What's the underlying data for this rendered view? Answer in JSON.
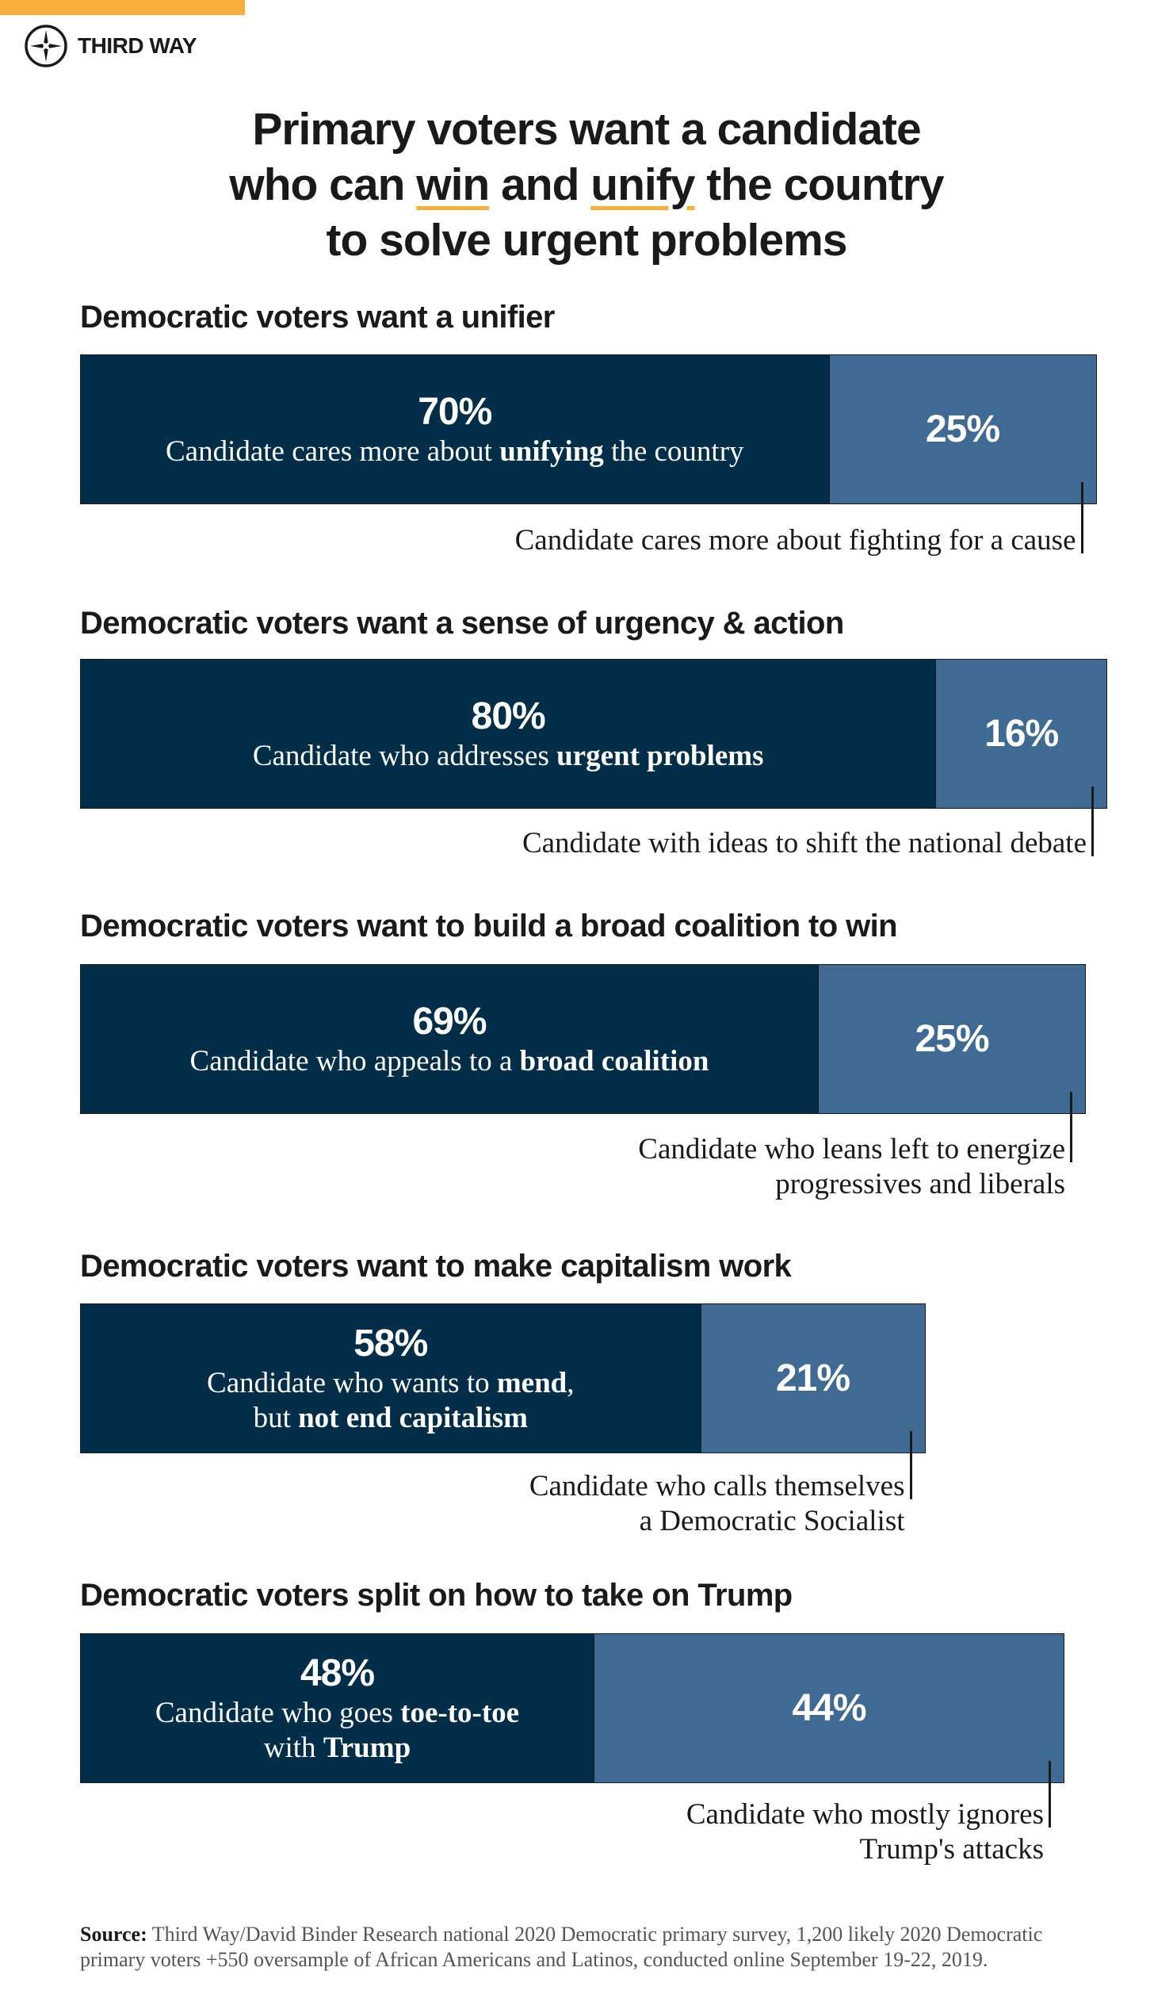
{
  "brand": {
    "name": "THIRD WAY",
    "logo_icon": "compass-star-icon",
    "accent_color": "#f9ad3b"
  },
  "title": {
    "line1": "Primary voters want a candidate",
    "line2_a": "who can ",
    "line2_win": "win",
    "line2_b": " and ",
    "line2_unify": "unify",
    "line2_c": " the country",
    "line3": "to solve urgent problems"
  },
  "colors": {
    "primary_choice": "#032e4a",
    "alternative_choice": "#3f6a93"
  },
  "chart_data": {
    "type": "bar",
    "orientation": "horizontal-stacked",
    "sections": [
      {
        "heading": "Democratic voters want a unifier",
        "left": {
          "value": 70,
          "pct": "70%",
          "label": [
            {
              "t": "Candidate cares more about ",
              "b": false
            },
            {
              "t": "unifying",
              "b": true
            },
            {
              "t": " the country",
              "b": false
            }
          ]
        },
        "right": {
          "value": 25,
          "pct": "25%",
          "label": [
            "Candidate cares more about fighting for a cause"
          ]
        }
      },
      {
        "heading": "Democratic voters want a sense of urgency & action",
        "left": {
          "value": 80,
          "pct": "80%",
          "label": [
            {
              "t": "Candidate who addresses ",
              "b": false
            },
            {
              "t": "urgent problems",
              "b": true
            }
          ]
        },
        "right": {
          "value": 16,
          "pct": "16%",
          "label": [
            "Candidate with ideas to shift the national debate"
          ]
        }
      },
      {
        "heading": "Democratic voters want to build a broad coalition to win",
        "left": {
          "value": 69,
          "pct": "69%",
          "label": [
            {
              "t": "Candidate who appeals to a ",
              "b": false
            },
            {
              "t": "broad coalition",
              "b": true
            }
          ]
        },
        "right": {
          "value": 25,
          "pct": "25%",
          "label": [
            "Candidate who leans left to energize",
            "progressives and liberals"
          ]
        }
      },
      {
        "heading": "Democratic voters want to make capitalism work",
        "left": {
          "value": 58,
          "pct": "58%",
          "label": [
            {
              "t": "Candidate who wants to ",
              "b": false
            },
            {
              "t": "mend",
              "b": true
            },
            {
              "t": ",",
              "b": false
            },
            {
              "br": true
            },
            {
              "t": "but ",
              "b": false
            },
            {
              "t": "not end capitalism",
              "b": true
            }
          ]
        },
        "right": {
          "value": 21,
          "pct": "21%",
          "label": [
            "Candidate who calls themselves",
            "a Democratic Socialist"
          ]
        }
      },
      {
        "heading": "Democratic voters split on how to take on Trump",
        "left": {
          "value": 48,
          "pct": "48%",
          "label": [
            {
              "t": "Candidate who goes ",
              "b": false
            },
            {
              "t": "toe-to-toe",
              "b": true
            },
            {
              "br": true
            },
            {
              "t": "with ",
              "b": false
            },
            {
              "t": "Trump",
              "b": true
            }
          ]
        },
        "right": {
          "value": 44,
          "pct": "44%",
          "label": [
            "Candidate who mostly ignores",
            "Trump's attacks"
          ]
        }
      }
    ]
  },
  "source": {
    "label": "Source:",
    "text": " Third Way/David Binder Research national 2020 Democratic primary survey, 1,200 likely 2020 Democratic primary voters +550 oversample of African Americans and Latinos, conducted online September 19-22, 2019."
  }
}
